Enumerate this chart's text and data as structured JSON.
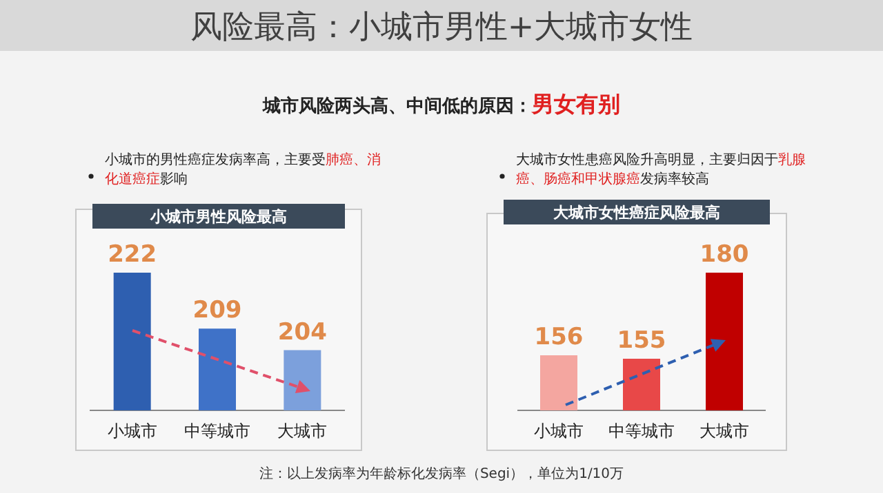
{
  "chart_data": [
    {
      "type": "other",
      "title": "风险最高：小城市男性+大城市女性",
      "subtitle": "城市风险两头高、中间低的原因：**男女有别**",
      "annotations": [
        "注：以上发病率为年龄标化发病率（Segi），单位为1/10万"
      ]
    },
    {
      "type": "bar",
      "title": "小城市男性风险最高",
      "annotations": [
        "小城市的男性癌症发病率高，主要受**肺癌、消化道癌症**影响"
      ],
      "categories": [
        "小城市",
        "中等城市",
        "大城市"
      ],
      "values": [
        222,
        209,
        204
      ],
      "colors": [
        "#2e5fb0",
        "#3f72c8",
        "#7ca0dc"
      ],
      "ylim": [
        190,
        222
      ],
      "data_labels": true,
      "tick_labels": "x"
    },
    {
      "type": "bar",
      "title": "大城市女性癌症风险最高",
      "annotations": [
        "大城市女性患癌风险升高明显，主要归因于**乳腺癌、肠癌和甲状腺癌**发病率较高"
      ],
      "categories": [
        "小城市",
        "中等城市",
        "大城市"
      ],
      "values": [
        156,
        155,
        180
      ],
      "colors": [
        "#f4a6a0",
        "#e84848",
        "#c00000"
      ],
      "ylim": [
        140,
        180
      ],
      "data_labels": true,
      "tick_labels": "x"
    }
  ]
}
